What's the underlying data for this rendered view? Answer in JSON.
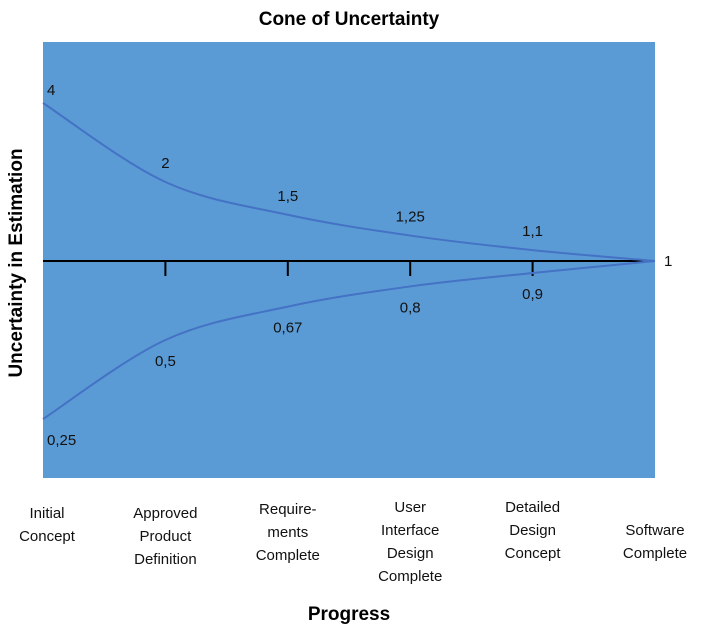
{
  "chart_data": {
    "type": "line",
    "title": "Cone of Uncertainty",
    "xlabel": "Progress",
    "ylabel": "Uncertainty in Estimation",
    "y_scale": "log",
    "categories": [
      [
        "Initial",
        "Concept"
      ],
      [
        "Approved",
        "Product",
        "Definition"
      ],
      [
        "Requirе-",
        "ments",
        "Complete"
      ],
      [
        "User",
        "Interface",
        "Design",
        "Complete"
      ],
      [
        "Detailed",
        "Design",
        "Concept"
      ],
      [
        "Software",
        "Complete"
      ]
    ],
    "series": [
      {
        "values": [
          4,
          2,
          1.5,
          1.25,
          1.1,
          1
        ],
        "labels": [
          "4",
          "2",
          "1,5",
          "1,25",
          "1,1",
          "1"
        ]
      },
      {
        "values": [
          0.25,
          0.5,
          0.67,
          0.8,
          0.9,
          1
        ],
        "labels": [
          "0,25",
          "0,5",
          "0,67",
          "0,8",
          "0,9",
          ""
        ]
      }
    ],
    "grid": false,
    "colors": {
      "plot_background": "#5b9bd5",
      "line": "#4472c4",
      "axis": "#000000"
    }
  }
}
